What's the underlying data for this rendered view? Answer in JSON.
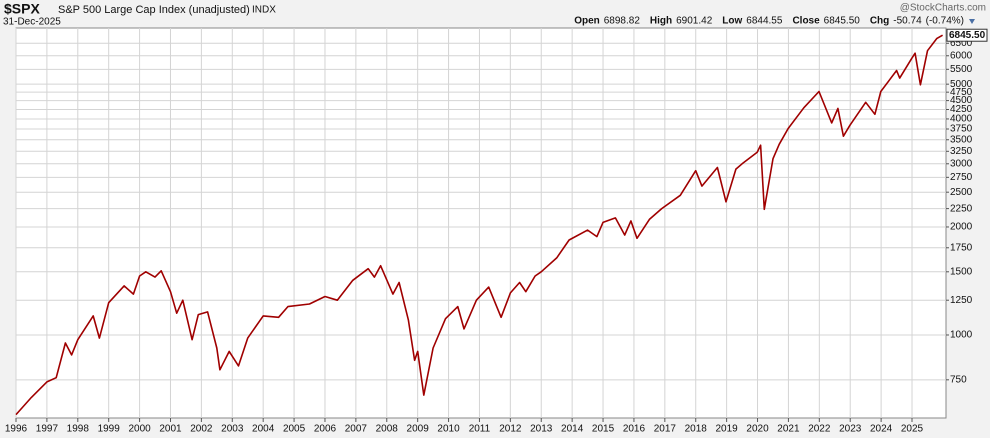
{
  "chart_data": {
    "type": "line",
    "title": "$SPX",
    "subtitle": "S&P 500 Large Cap Index (unadjusted)",
    "exchange": "INDX",
    "date": "31-Dec-2025",
    "watermark": "@StockCharts.com",
    "quote": [
      {
        "label": "Open",
        "value": 6898.82
      },
      {
        "label": "High",
        "value": 6901.42
      },
      {
        "label": "Low",
        "value": 6844.55
      },
      {
        "label": "Close",
        "value": 6845.5,
        "value_label": "6845.50"
      },
      {
        "label": "Chg",
        "value": -50.74,
        "pct_label": "(-0.74%)"
      }
    ],
    "last_label": {
      "value": 6845.5,
      "label": "6845.50"
    },
    "log_scale": true,
    "grid": true,
    "xlim": [
      1996,
      2026.1
    ],
    "xticks": [
      1996,
      1997,
      1998,
      1999,
      2000,
      2001,
      2002,
      2003,
      2004,
      2005,
      2006,
      2007,
      2008,
      2009,
      2010,
      2011,
      2012,
      2013,
      2014,
      2015,
      2016,
      2017,
      2018,
      2019,
      2020,
      2021,
      2022,
      2023,
      2024,
      2025
    ],
    "ylim": [
      587,
      7170
    ],
    "yticks": [
      750,
      1000,
      1250,
      1500,
      1750,
      2000,
      2250,
      2500,
      2750,
      3000,
      3250,
      3500,
      3750,
      4000,
      4250,
      4500,
      4750,
      5000,
      5500,
      6000,
      6500
    ],
    "series": [
      {
        "name": "$SPX",
        "color": "#a00000",
        "x": [
          1996.0,
          1996.5,
          1997.0,
          1997.3,
          1997.6,
          1997.8,
          1998.0,
          1998.5,
          1998.7,
          1999.0,
          1999.5,
          1999.8,
          2000.0,
          2000.2,
          2000.5,
          2000.7,
          2001.0,
          2001.2,
          2001.4,
          2001.7,
          2001.9,
          2002.2,
          2002.5,
          2002.6,
          2002.9,
          2003.2,
          2003.5,
          2004.0,
          2004.5,
          2004.8,
          2005.5,
          2006.0,
          2006.4,
          2006.9,
          2007.4,
          2007.6,
          2007.8,
          2008.2,
          2008.4,
          2008.7,
          2008.9,
          2009.0,
          2009.2,
          2009.5,
          2009.9,
          2010.3,
          2010.5,
          2010.9,
          2011.3,
          2011.7,
          2012.0,
          2012.3,
          2012.5,
          2012.8,
          2013.0,
          2013.5,
          2013.9,
          2014.5,
          2014.8,
          2015.0,
          2015.4,
          2015.7,
          2015.9,
          2016.1,
          2016.5,
          2016.9,
          2017.5,
          2018.0,
          2018.2,
          2018.7,
          2018.98,
          2019.3,
          2019.5,
          2019.99,
          2020.1,
          2020.22,
          2020.5,
          2020.7,
          2020.99,
          2021.5,
          2021.99,
          2022.4,
          2022.6,
          2022.78,
          2022.99,
          2023.5,
          2023.8,
          2023.99,
          2024.5,
          2024.6,
          2024.99,
          2025.1,
          2025.27,
          2025.5,
          2025.8,
          2025.99
        ],
        "values": [
          600,
          670,
          740,
          760,
          950,
          880,
          970,
          1130,
          980,
          1230,
          1370,
          1300,
          1460,
          1500,
          1450,
          1510,
          1320,
          1150,
          1250,
          970,
          1140,
          1160,
          920,
          800,
          900,
          820,
          980,
          1130,
          1120,
          1200,
          1220,
          1280,
          1250,
          1420,
          1530,
          1450,
          1560,
          1300,
          1400,
          1100,
          850,
          900,
          680,
          920,
          1110,
          1200,
          1040,
          1250,
          1360,
          1120,
          1310,
          1400,
          1320,
          1460,
          1500,
          1640,
          1840,
          1960,
          1880,
          2060,
          2120,
          1900,
          2080,
          1860,
          2100,
          2250,
          2450,
          2870,
          2600,
          2930,
          2350,
          2900,
          3000,
          3230,
          3380,
          2240,
          3100,
          3400,
          3760,
          4300,
          4770,
          3900,
          4280,
          3580,
          3840,
          4450,
          4120,
          4770,
          5460,
          5200,
          5900,
          6100,
          4980,
          6200,
          6700,
          6845.5
        ]
      }
    ]
  }
}
